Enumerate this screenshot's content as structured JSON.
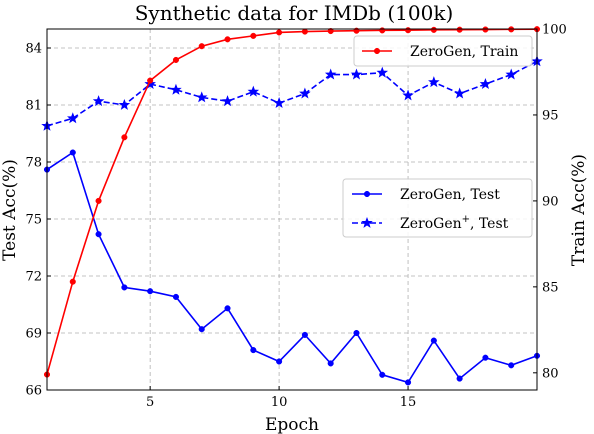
{
  "chart_data": {
    "type": "line",
    "title": "Synthetic data for IMDb (100k)",
    "xlabel": "Epoch",
    "ylabel_left": "Test Acc(%)",
    "ylabel_right": "Train Acc(%)",
    "xlim": [
      1,
      20
    ],
    "ylim_left": [
      66,
      85
    ],
    "ylim_right": [
      79,
      100
    ],
    "xticks": [
      5,
      10,
      15
    ],
    "yticks_left": [
      66,
      69,
      72,
      75,
      78,
      81,
      84
    ],
    "yticks_right": [
      80,
      85,
      90,
      95,
      100
    ],
    "grid": true,
    "x": [
      1,
      2,
      3,
      4,
      5,
      6,
      7,
      8,
      9,
      10,
      11,
      12,
      13,
      14,
      15,
      16,
      17,
      18,
      19,
      20
    ],
    "series": [
      {
        "name": "ZeroGen, Test",
        "axis": "left",
        "color": "#0000ff",
        "linestyle": "solid",
        "marker": "circle",
        "values": [
          77.6,
          78.5,
          74.2,
          71.4,
          71.2,
          70.9,
          69.2,
          70.3,
          68.1,
          67.5,
          68.9,
          67.4,
          69.0,
          66.8,
          66.4,
          68.6,
          66.6,
          67.7,
          67.3,
          67.8
        ]
      },
      {
        "name": "ZeroGen+, Test",
        "axis": "left",
        "color": "#0000ff",
        "linestyle": "dashed",
        "marker": "star",
        "values": [
          79.9,
          80.3,
          81.2,
          81.0,
          82.1,
          81.8,
          81.4,
          81.2,
          81.7,
          81.1,
          81.6,
          82.6,
          82.6,
          82.7,
          81.5,
          82.2,
          81.6,
          82.1,
          82.6,
          83.3
        ]
      },
      {
        "name": "ZeroGen, Train",
        "axis": "right",
        "color": "#ff0000",
        "linestyle": "solid",
        "marker": "circle",
        "values": [
          79.9,
          85.3,
          90.0,
          93.7,
          97.0,
          98.2,
          99.0,
          99.4,
          99.6,
          99.8,
          99.85,
          99.88,
          99.9,
          99.92,
          99.93,
          99.95,
          99.96,
          99.97,
          99.98,
          99.99
        ]
      }
    ],
    "legend_upper": {
      "location": "top-right",
      "entries": [
        {
          "series": "ZeroGen, Train",
          "label": "ZeroGen, Train"
        }
      ]
    },
    "legend_lower": {
      "location": "center-right",
      "entries": [
        {
          "series": "ZeroGen, Test",
          "label": "ZeroGen, Test"
        },
        {
          "series": "ZeroGen+, Test",
          "label": "ZeroGen",
          "label_sup": "+",
          "label_suffix": ", Test"
        }
      ]
    }
  }
}
